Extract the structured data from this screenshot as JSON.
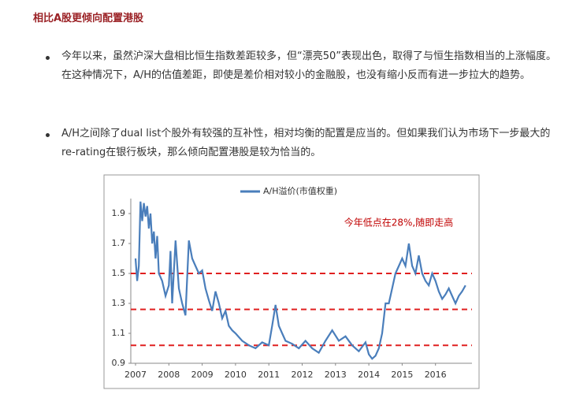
{
  "title": "相比A股更倾向配置港股",
  "bullets": [
    "今年以来，虽然沪深大盘相比恒生指数差距较多，但“漂亮50”表现出色，取得了与恒生指数相当的上涨幅度。在这种情况下，A/H的估值差距，即使是差价相对较小的金融股，也没有缩小反而有进一步拉大的趋势。",
    "A/H之间除了dual list个股外有较强的互补性，相对均衡的配置是应当的。但如果我们认为市场下一步最大的re-rating在银行板块，那么倾向配置港股是较为恰当的。"
  ],
  "chart_data": {
    "type": "line",
    "annotation": "今年低点在28%,随即走高",
    "series": [
      {
        "name": "A/H溢价(市值权重)",
        "color": "#4a7ebb",
        "x": [
          2007.0,
          2007.05,
          2007.1,
          2007.15,
          2007.2,
          2007.25,
          2007.3,
          2007.35,
          2007.4,
          2007.45,
          2007.5,
          2007.55,
          2007.6,
          2007.65,
          2007.7,
          2007.8,
          2007.9,
          2008.0,
          2008.05,
          2008.1,
          2008.2,
          2008.3,
          2008.4,
          2008.5,
          2008.6,
          2008.7,
          2008.8,
          2008.9,
          2009.0,
          2009.1,
          2009.2,
          2009.3,
          2009.4,
          2009.5,
          2009.6,
          2009.7,
          2009.8,
          2009.9,
          2010.0,
          2010.2,
          2010.4,
          2010.6,
          2010.8,
          2011.0,
          2011.1,
          2011.2,
          2011.3,
          2011.4,
          2011.5,
          2011.7,
          2011.9,
          2012.1,
          2012.3,
          2012.5,
          2012.7,
          2012.9,
          2013.1,
          2013.3,
          2013.5,
          2013.7,
          2013.9,
          2014.0,
          2014.1,
          2014.2,
          2014.3,
          2014.4,
          2014.5,
          2014.6,
          2014.7,
          2014.8,
          2014.9,
          2015.0,
          2015.1,
          2015.2,
          2015.3,
          2015.4,
          2015.5,
          2015.6,
          2015.7,
          2015.8,
          2015.9,
          2016.0,
          2016.1,
          2016.2,
          2016.3,
          2016.4,
          2016.5,
          2016.6,
          2016.7,
          2016.8,
          2016.9
        ],
        "values": [
          1.6,
          1.45,
          1.55,
          1.98,
          1.85,
          1.97,
          1.88,
          1.95,
          1.8,
          1.9,
          1.7,
          1.78,
          1.6,
          1.75,
          1.5,
          1.45,
          1.35,
          1.42,
          1.65,
          1.3,
          1.72,
          1.4,
          1.3,
          1.22,
          1.72,
          1.6,
          1.55,
          1.5,
          1.52,
          1.4,
          1.32,
          1.25,
          1.38,
          1.3,
          1.2,
          1.25,
          1.15,
          1.12,
          1.1,
          1.05,
          1.02,
          1.0,
          1.04,
          1.02,
          1.15,
          1.29,
          1.15,
          1.1,
          1.05,
          1.03,
          1.0,
          1.05,
          1.0,
          0.97,
          1.05,
          1.12,
          1.05,
          1.08,
          1.02,
          0.98,
          1.04,
          0.96,
          0.93,
          0.95,
          1.0,
          1.1,
          1.3,
          1.3,
          1.4,
          1.5,
          1.55,
          1.6,
          1.55,
          1.7,
          1.55,
          1.5,
          1.62,
          1.5,
          1.45,
          1.42,
          1.5,
          1.45,
          1.38,
          1.33,
          1.36,
          1.4,
          1.35,
          1.3,
          1.35,
          1.38,
          1.42
        ]
      }
    ],
    "reference_lines": [
      1.5,
      1.26,
      1.02
    ],
    "reference_color": "#e02020",
    "xlim": [
      2007,
      2017
    ],
    "xticks": [
      2007,
      2008,
      2009,
      2010,
      2011,
      2012,
      2013,
      2014,
      2015,
      2016
    ],
    "ylim": [
      0.9,
      2.0
    ],
    "yticks": [
      0.9,
      1.1,
      1.3,
      1.5,
      1.7,
      1.9
    ]
  }
}
